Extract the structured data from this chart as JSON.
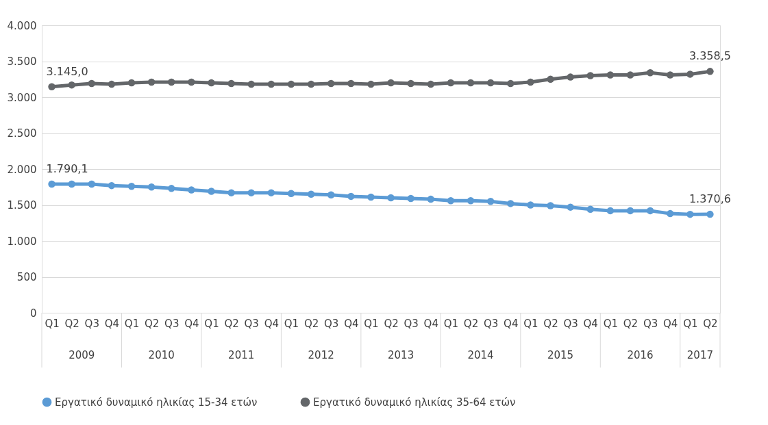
{
  "chart_data": {
    "type": "line",
    "categories": [
      "Q1",
      "Q2",
      "Q3",
      "Q4",
      "Q1",
      "Q2",
      "Q3",
      "Q4",
      "Q1",
      "Q2",
      "Q3",
      "Q4",
      "Q1",
      "Q2",
      "Q3",
      "Q4",
      "Q1",
      "Q2",
      "Q3",
      "Q4",
      "Q1",
      "Q2",
      "Q3",
      "Q4",
      "Q1",
      "Q2",
      "Q3",
      "Q4",
      "Q1",
      "Q2",
      "Q3",
      "Q4",
      "Q1",
      "Q2"
    ],
    "annotations": [
      "2009",
      "2010",
      "2011",
      "2012",
      "2013",
      "2014",
      "2015",
      "2016",
      "2017"
    ],
    "series": [
      {
        "name": "Εργατικό δυναμικό ηλικίας 15-34 ετών",
        "color": "#5b9bd5",
        "values": [
          1790.1,
          1790,
          1790,
          1770,
          1760,
          1750,
          1730,
          1710,
          1690,
          1670,
          1670,
          1670,
          1660,
          1650,
          1640,
          1620,
          1610,
          1600,
          1590,
          1580,
          1560,
          1560,
          1550,
          1520,
          1500,
          1490,
          1470,
          1440,
          1420,
          1420,
          1420,
          1380,
          1370,
          1370.6
        ],
        "value_labels": [
          "1.790,1",
          null,
          null,
          null,
          null,
          null,
          null,
          null,
          null,
          null,
          null,
          null,
          null,
          null,
          null,
          null,
          null,
          null,
          null,
          null,
          null,
          null,
          null,
          null,
          null,
          null,
          null,
          null,
          null,
          null,
          null,
          null,
          null,
          "1.370,6"
        ]
      },
      {
        "name": "Εργατικό δυναμικό ηλικίας 35-64 ετών",
        "color": "#636669",
        "values": [
          3145.0,
          3170,
          3190,
          3180,
          3200,
          3210,
          3210,
          3210,
          3200,
          3190,
          3180,
          3180,
          3180,
          3180,
          3190,
          3190,
          3180,
          3200,
          3190,
          3180,
          3200,
          3200,
          3200,
          3190,
          3210,
          3250,
          3280,
          3300,
          3310,
          3310,
          3340,
          3310,
          3320,
          3358.5
        ],
        "value_labels": [
          "3.145,0",
          null,
          null,
          null,
          null,
          null,
          null,
          null,
          null,
          null,
          null,
          null,
          null,
          null,
          null,
          null,
          null,
          null,
          null,
          null,
          null,
          null,
          null,
          null,
          null,
          null,
          null,
          null,
          null,
          null,
          null,
          null,
          null,
          "3.358,5"
        ]
      }
    ],
    "ylim": [
      0,
      4000
    ],
    "yticks": [
      {
        "value": 0,
        "label": "0"
      },
      {
        "value": 500,
        "label": "500"
      },
      {
        "value": 1000,
        "label": "1.000"
      },
      {
        "value": 1500,
        "label": "1.500"
      },
      {
        "value": 2000,
        "label": "2.000"
      },
      {
        "value": 2500,
        "label": "2.500"
      },
      {
        "value": 3000,
        "label": "3.000"
      },
      {
        "value": 3500,
        "label": "3.500"
      },
      {
        "value": 4000,
        "label": "4.000"
      }
    ],
    "grid": "y",
    "legend": "bottom",
    "marker": "circle",
    "line_style": "solid"
  }
}
